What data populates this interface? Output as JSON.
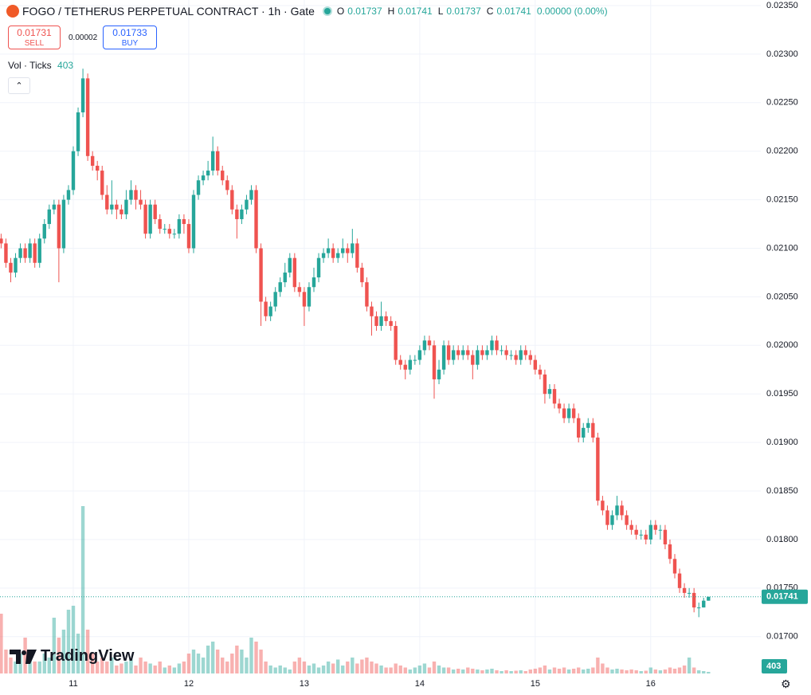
{
  "chart_data": {
    "type": "candlestick",
    "title": "FOGO / TETHERUS PERPETUAL CONTRACT · 1h · Gate",
    "ohlc_labels": [
      "O",
      "H",
      "L",
      "C"
    ],
    "change": "0.00000 (0.00%)",
    "sell": {
      "price": 0.01731,
      "label": "SELL"
    },
    "buy": {
      "price": 0.01733,
      "label": "BUY"
    },
    "spread": 2e-05,
    "volume_label": "Vol · Ticks",
    "brand": "TradingView",
    "up_color": "#26a69a",
    "down_color": "#ef5350",
    "grid": true,
    "ylim": [
      0.01662,
      0.0235
    ],
    "yticks": [
      {
        "value": 0.0235,
        "label": "0.02350"
      },
      {
        "value": 0.023,
        "label": "0.02300"
      },
      {
        "value": 0.0225,
        "label": "0.02250"
      },
      {
        "value": 0.022,
        "label": "0.02200"
      },
      {
        "value": 0.0215,
        "label": "0.02150"
      },
      {
        "value": 0.021,
        "label": "0.02100"
      },
      {
        "value": 0.0205,
        "label": "0.02050"
      },
      {
        "value": 0.02,
        "label": "0.02000"
      },
      {
        "value": 0.0195,
        "label": "0.01950"
      },
      {
        "value": 0.019,
        "label": "0.01900"
      },
      {
        "value": 0.0185,
        "label": "0.01850"
      },
      {
        "value": 0.018,
        "label": "0.01800"
      },
      {
        "value": 0.0175,
        "label": "0.01750"
      },
      {
        "value": 0.017,
        "label": "0.01700"
      }
    ],
    "categories": [
      null,
      null,
      null,
      null,
      null,
      null,
      null,
      null,
      null,
      null,
      null,
      null,
      null,
      null,
      null,
      "11",
      null,
      null,
      null,
      null,
      null,
      null,
      null,
      null,
      null,
      null,
      null,
      null,
      null,
      null,
      null,
      null,
      null,
      null,
      null,
      null,
      null,
      null,
      null,
      "12",
      null,
      null,
      null,
      null,
      null,
      null,
      null,
      null,
      null,
      null,
      null,
      null,
      null,
      null,
      null,
      null,
      null,
      null,
      null,
      null,
      null,
      null,
      null,
      "13",
      null,
      null,
      null,
      null,
      null,
      null,
      null,
      null,
      null,
      null,
      null,
      null,
      null,
      null,
      null,
      null,
      null,
      null,
      null,
      null,
      null,
      null,
      null,
      "14",
      null,
      null,
      null,
      null,
      null,
      null,
      null,
      null,
      null,
      null,
      null,
      null,
      null,
      null,
      null,
      null,
      null,
      null,
      null,
      null,
      null,
      null,
      null,
      "15",
      null,
      null,
      null,
      null,
      null,
      null,
      null,
      null,
      null,
      null,
      null,
      null,
      null,
      null,
      null,
      null,
      null,
      null,
      null,
      null,
      null,
      null,
      null,
      "16",
      null,
      null,
      null,
      null,
      null,
      null,
      null,
      null,
      null,
      null,
      null,
      null
    ],
    "open": [
      0.0211,
      0.02105,
      0.02085,
      0.02075,
      0.0209,
      0.021,
      0.0209,
      0.02105,
      0.02085,
      0.0211,
      0.02125,
      0.0214,
      0.02145,
      0.021,
      0.0215,
      0.0216,
      0.022,
      0.0224,
      0.02275,
      0.02195,
      0.02185,
      0.0218,
      0.02155,
      0.0214,
      0.02145,
      0.0214,
      0.02135,
      0.0215,
      0.0216,
      0.0215,
      0.02145,
      0.02115,
      0.02145,
      0.0213,
      0.0212,
      0.0212,
      0.02115,
      0.02115,
      0.0213,
      0.02125,
      0.021,
      0.02155,
      0.0217,
      0.02175,
      0.0218,
      0.022,
      0.0218,
      0.0217,
      0.0216,
      0.0214,
      0.0213,
      0.0214,
      0.0215,
      0.0216,
      0.021,
      0.02045,
      0.0203,
      0.0204,
      0.02055,
      0.02065,
      0.02075,
      0.0209,
      0.0206,
      0.02055,
      0.0204,
      0.0206,
      0.0207,
      0.0209,
      0.02095,
      0.021,
      0.0209,
      0.02095,
      0.021,
      0.02095,
      0.02105,
      0.0208,
      0.02065,
      0.0204,
      0.0203,
      0.0202,
      0.0203,
      0.02025,
      0.0202,
      0.01985,
      0.0198,
      0.01975,
      0.01985,
      0.01985,
      0.01995,
      0.02005,
      0.02,
      0.01965,
      0.01975,
      0.02,
      0.01985,
      0.01995,
      0.0199,
      0.01995,
      0.0199,
      0.0198,
      0.01995,
      0.0199,
      0.01995,
      0.02005,
      0.01995,
      0.01995,
      0.0199,
      0.0199,
      0.01985,
      0.01995,
      0.0199,
      0.01985,
      0.01975,
      0.0197,
      0.0195,
      0.01955,
      0.0194,
      0.01935,
      0.01925,
      0.01935,
      0.01925,
      0.01905,
      0.01915,
      0.0192,
      0.01905,
      0.0184,
      0.0183,
      0.01815,
      0.01825,
      0.01835,
      0.01825,
      0.01815,
      0.0181,
      0.01805,
      0.01805,
      0.018,
      0.01815,
      0.0181,
      0.0181,
      0.01795,
      0.0178,
      0.01765,
      0.0175,
      0.01745,
      0.01745,
      0.0173,
      0.0173,
      0.01737
    ],
    "high": [
      0.02115,
      0.0211,
      0.0209,
      0.02095,
      0.02105,
      0.02105,
      0.0211,
      0.0211,
      0.02115,
      0.0213,
      0.02145,
      0.0215,
      0.0215,
      0.02155,
      0.02165,
      0.02205,
      0.02245,
      0.02285,
      0.0228,
      0.022,
      0.0219,
      0.02185,
      0.02165,
      0.0217,
      0.0215,
      0.02145,
      0.0216,
      0.0217,
      0.02165,
      0.0216,
      0.0215,
      0.0215,
      0.0215,
      0.02135,
      0.02125,
      0.02125,
      0.0212,
      0.02135,
      0.02135,
      0.0213,
      0.0216,
      0.02175,
      0.0218,
      0.0219,
      0.02215,
      0.02205,
      0.02185,
      0.02175,
      0.02165,
      0.02145,
      0.02145,
      0.02155,
      0.02165,
      0.02165,
      0.02105,
      0.0205,
      0.02045,
      0.0206,
      0.0207,
      0.02085,
      0.02095,
      0.02095,
      0.02065,
      0.0206,
      0.02065,
      0.0208,
      0.02095,
      0.021,
      0.0211,
      0.02105,
      0.021,
      0.0211,
      0.02105,
      0.0212,
      0.0211,
      0.02085,
      0.0207,
      0.02045,
      0.02035,
      0.02045,
      0.02035,
      0.0203,
      0.02025,
      0.0199,
      0.01985,
      0.0199,
      0.0199,
      0.02,
      0.0201,
      0.0201,
      0.02005,
      0.01985,
      0.02005,
      0.02005,
      0.02,
      0.02,
      0.02,
      0.02,
      0.01995,
      0.02,
      0.02,
      0.02,
      0.0201,
      0.0201,
      0.02,
      0.02,
      0.01995,
      0.01995,
      0.02,
      0.02,
      0.01995,
      0.0199,
      0.0198,
      0.01975,
      0.0196,
      0.0196,
      0.01945,
      0.0194,
      0.0194,
      0.0194,
      0.0193,
      0.0192,
      0.01925,
      0.01925,
      0.0191,
      0.01845,
      0.01835,
      0.0183,
      0.01845,
      0.0184,
      0.0183,
      0.0182,
      0.01815,
      0.0181,
      0.0181,
      0.0182,
      0.0182,
      0.01815,
      0.01815,
      0.018,
      0.01785,
      0.0177,
      0.01755,
      0.0175,
      0.0175,
      0.01735,
      0.0174,
      0.01741
    ],
    "low": [
      0.021,
      0.0208,
      0.02065,
      0.0207,
      0.02085,
      0.02085,
      0.02085,
      0.0208,
      0.0208,
      0.02105,
      0.0212,
      0.02135,
      0.02065,
      0.02095,
      0.02145,
      0.02155,
      0.02195,
      0.02235,
      0.0219,
      0.0218,
      0.0217,
      0.0215,
      0.02135,
      0.02135,
      0.0213,
      0.0213,
      0.0213,
      0.02145,
      0.0214,
      0.0214,
      0.0211,
      0.0211,
      0.02125,
      0.02115,
      0.02115,
      0.0211,
      0.0211,
      0.0211,
      0.02115,
      0.02095,
      0.02095,
      0.0215,
      0.02165,
      0.0217,
      0.02175,
      0.02175,
      0.02165,
      0.02155,
      0.02135,
      0.0211,
      0.02125,
      0.02135,
      0.02145,
      0.02095,
      0.0202,
      0.02025,
      0.02025,
      0.02035,
      0.0205,
      0.0206,
      0.0207,
      0.02055,
      0.0205,
      0.0202,
      0.02035,
      0.02055,
      0.02065,
      0.02085,
      0.0209,
      0.02085,
      0.02085,
      0.0209,
      0.02085,
      0.0209,
      0.02075,
      0.0206,
      0.02035,
      0.0201,
      0.02015,
      0.02015,
      0.0202,
      0.02015,
      0.0198,
      0.01975,
      0.01965,
      0.0197,
      0.0198,
      0.0198,
      0.0199,
      0.01995,
      0.01945,
      0.0196,
      0.0197,
      0.0198,
      0.0198,
      0.01985,
      0.01985,
      0.01985,
      0.01965,
      0.01975,
      0.01985,
      0.01985,
      0.0199,
      0.0199,
      0.0199,
      0.01985,
      0.01985,
      0.0198,
      0.0198,
      0.01985,
      0.0198,
      0.0197,
      0.01965,
      0.0194,
      0.01945,
      0.01935,
      0.0193,
      0.0192,
      0.0192,
      0.0192,
      0.019,
      0.019,
      0.0191,
      0.019,
      0.01835,
      0.01825,
      0.0181,
      0.0181,
      0.0182,
      0.0182,
      0.0181,
      0.01805,
      0.018,
      0.018,
      0.01795,
      0.01795,
      0.01805,
      0.018,
      0.0179,
      0.01775,
      0.0176,
      0.01745,
      0.0174,
      0.0174,
      0.01725,
      0.0172,
      0.0173,
      0.01737
    ],
    "close": [
      0.02105,
      0.02085,
      0.02075,
      0.0209,
      0.021,
      0.0209,
      0.02105,
      0.02085,
      0.0211,
      0.02125,
      0.0214,
      0.02145,
      0.021,
      0.0215,
      0.0216,
      0.022,
      0.0224,
      0.02275,
      0.02195,
      0.02185,
      0.0218,
      0.02155,
      0.0214,
      0.02145,
      0.0214,
      0.02135,
      0.0215,
      0.0216,
      0.0215,
      0.02145,
      0.02115,
      0.02145,
      0.0213,
      0.0212,
      0.0212,
      0.02115,
      0.02115,
      0.0213,
      0.02125,
      0.021,
      0.02155,
      0.0217,
      0.02175,
      0.0218,
      0.022,
      0.0218,
      0.0217,
      0.0216,
      0.0214,
      0.0213,
      0.0214,
      0.0215,
      0.0216,
      0.021,
      0.02045,
      0.0203,
      0.0204,
      0.02055,
      0.02065,
      0.02075,
      0.0209,
      0.0206,
      0.02055,
      0.0204,
      0.0206,
      0.0207,
      0.0209,
      0.02095,
      0.021,
      0.0209,
      0.02095,
      0.021,
      0.02095,
      0.02105,
      0.0208,
      0.02065,
      0.0204,
      0.0203,
      0.0202,
      0.0203,
      0.02025,
      0.0202,
      0.01985,
      0.0198,
      0.01975,
      0.01985,
      0.01985,
      0.01995,
      0.02005,
      0.02,
      0.01965,
      0.01975,
      0.02,
      0.01985,
      0.01995,
      0.0199,
      0.01995,
      0.0199,
      0.0198,
      0.01995,
      0.0199,
      0.01995,
      0.02005,
      0.01995,
      0.01995,
      0.0199,
      0.0199,
      0.01985,
      0.01995,
      0.0199,
      0.01985,
      0.01975,
      0.0197,
      0.0195,
      0.01955,
      0.0194,
      0.01935,
      0.01925,
      0.01935,
      0.01925,
      0.01905,
      0.01915,
      0.0192,
      0.01905,
      0.0184,
      0.0183,
      0.01815,
      0.01825,
      0.01835,
      0.01825,
      0.01815,
      0.0181,
      0.01805,
      0.01805,
      0.018,
      0.01815,
      0.0181,
      0.0181,
      0.01795,
      0.0178,
      0.01765,
      0.0175,
      0.01745,
      0.01745,
      0.0173,
      0.0173,
      0.01737,
      0.01741
    ],
    "volume": [
      15000,
      6000,
      4000,
      3000,
      5000,
      9000,
      4000,
      3000,
      3000,
      5000,
      4000,
      14000,
      9000,
      11000,
      16000,
      17000,
      10000,
      42000,
      11000,
      5000,
      3000,
      4000,
      3000,
      4000,
      2000,
      2500,
      3000,
      3500,
      2000,
      4000,
      3000,
      2500,
      2000,
      3000,
      1500,
      2000,
      1500,
      2500,
      3000,
      5000,
      6000,
      5000,
      4000,
      7000,
      8000,
      6000,
      4000,
      3000,
      5000,
      7000,
      6000,
      4000,
      9000,
      8000,
      6000,
      3000,
      2000,
      1500,
      2000,
      1500,
      1000,
      3000,
      4000,
      3000,
      2000,
      2500,
      1500,
      2000,
      3000,
      2500,
      3500,
      2000,
      3000,
      4000,
      2500,
      3500,
      4000,
      3000,
      2500,
      2000,
      1500,
      1500,
      2500,
      2000,
      1500,
      1000,
      1500,
      2000,
      2500,
      1500,
      3000,
      2000,
      1500,
      1500,
      1000,
      1200,
      1000,
      1500,
      1200,
      1000,
      800,
      1000,
      1200,
      800,
      600,
      800,
      600,
      700,
      800,
      600,
      1000,
      1200,
      1500,
      2000,
      1000,
      1500,
      1200,
      1500,
      1000,
      1200,
      1500,
      1000,
      1200,
      1500,
      4000,
      2500,
      1500,
      1000,
      1200,
      1000,
      800,
      1000,
      800,
      600,
      700,
      1500,
      1000,
      800,
      1000,
      1500,
      1200,
      1500,
      2000,
      4000,
      1500,
      800,
      600,
      403
    ]
  }
}
